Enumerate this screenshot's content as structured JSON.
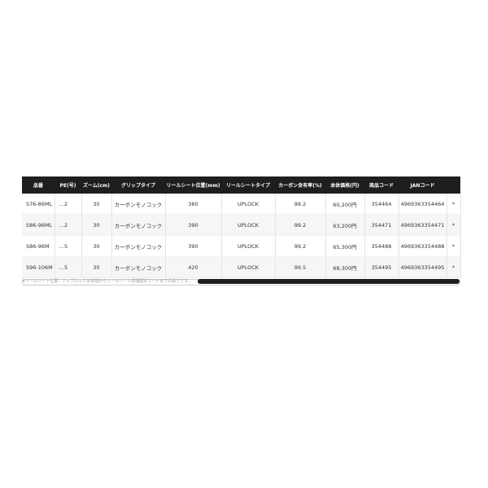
{
  "table": {
    "headers": [
      "品番",
      "PE(号)",
      "ズーム(cm)",
      "グリップタイプ",
      "リールシート位置(mm)",
      "リールシートタイプ",
      "カーボン含有率(%)",
      "本体価格(円)",
      "商品コード",
      "JANコード",
      ""
    ],
    "rows": [
      [
        "S76-86ML",
        "…2",
        "30",
        "カーボンモノコック",
        "360",
        "UPLOCK",
        "99.2",
        "60,200円",
        "354464",
        "4969363354464",
        "*"
      ],
      [
        "S86-96ML",
        "…2",
        "30",
        "カーボンモノコック",
        "390",
        "UPLOCK",
        "99.2",
        "63,200円",
        "354471",
        "4969363354471",
        "*"
      ],
      [
        "S86-96M",
        "…5",
        "30",
        "カーボンモノコック",
        "390",
        "UPLOCK",
        "99.2",
        "65,300円",
        "354488",
        "4969363354488",
        "*"
      ],
      [
        "S96-106M",
        "…5",
        "30",
        "カーボンモノコック",
        "420",
        "UPLOCK",
        "99.5",
        "68,300円",
        "354495",
        "4969363354495",
        "*"
      ]
    ]
  },
  "scrollbar": {
    "position_percent": 100,
    "visible_fraction": 0.6
  },
  "footnote": "※リールシート位置：アップロックは末端からリールシート前端固定フードまでの長さです。",
  "colors": {
    "header_bg": "#1e1e1e",
    "header_text": "#ffffff"
  }
}
